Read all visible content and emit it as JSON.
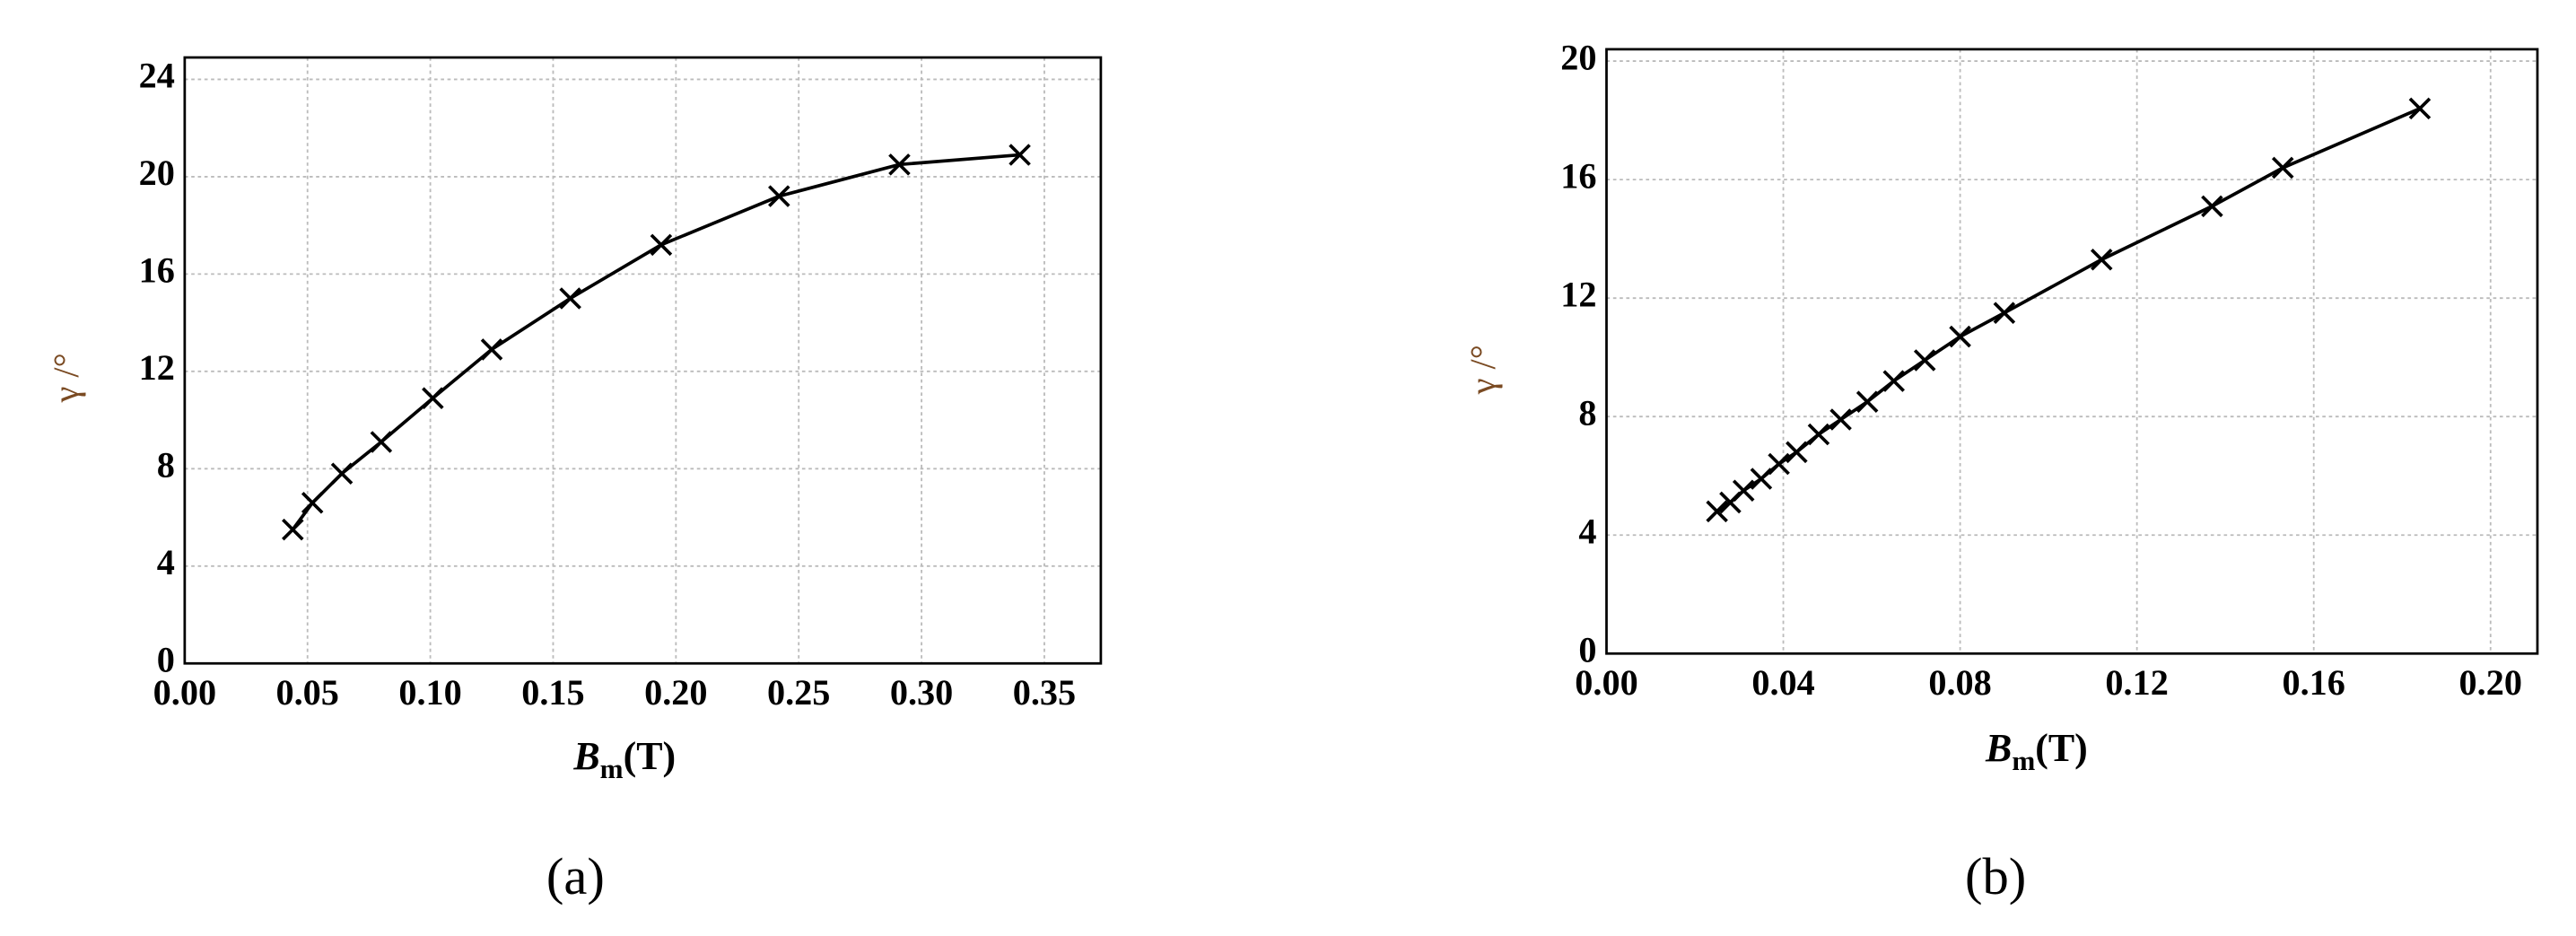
{
  "chart_data": [
    {
      "type": "line",
      "panel_label": "(a)",
      "y_label": "γ /°",
      "x_label": {
        "symbol": "B",
        "subscript": "m",
        "unit": "(T)"
      },
      "color": "#000000",
      "grid": true,
      "marker": "x",
      "x": [
        0.044,
        0.052,
        0.064,
        0.08,
        0.101,
        0.125,
        0.157,
        0.194,
        0.242,
        0.291,
        0.34
      ],
      "values": [
        5.5,
        6.6,
        7.8,
        9.1,
        10.9,
        12.9,
        15.0,
        17.2,
        19.2,
        20.5,
        20.9
      ],
      "xlim": [
        0,
        0.373
      ],
      "ylim": [
        0,
        24.9
      ],
      "xticks": [
        {
          "value": 0,
          "label": "0.00"
        },
        0.05,
        {
          "value": 0.1,
          "label": "0.10"
        },
        0.15,
        {
          "value": 0.2,
          "label": "0.20"
        },
        0.25,
        {
          "value": 0.3,
          "label": "0.30"
        },
        0.35
      ],
      "yticks": [
        0,
        4,
        8,
        12,
        16,
        20,
        24
      ]
    },
    {
      "type": "line",
      "panel_label": "(b)",
      "y_label": "γ /°",
      "x_label": {
        "symbol": "B",
        "subscript": "m",
        "unit": "(T)"
      },
      "color": "#000000",
      "grid": true,
      "marker": "x",
      "x": [
        0.025,
        0.028,
        0.031,
        0.035,
        0.039,
        0.043,
        0.048,
        0.053,
        0.059,
        0.065,
        0.072,
        0.08,
        0.09,
        0.112,
        0.137,
        0.153,
        0.184
      ],
      "values": [
        4.8,
        5.1,
        5.5,
        5.9,
        6.4,
        6.8,
        7.4,
        7.9,
        8.5,
        9.2,
        9.9,
        10.7,
        11.5,
        13.3,
        15.1,
        16.4,
        18.4
      ],
      "xlim": [
        0,
        0.2106
      ],
      "ylim": [
        0,
        20.4
      ],
      "xticks": [
        {
          "value": 0,
          "label": "0.00"
        },
        0.04,
        0.08,
        0.12,
        0.16,
        {
          "value": 0.2,
          "label": "0.20"
        }
      ],
      "yticks": [
        0,
        4,
        8,
        12,
        16,
        20
      ]
    }
  ]
}
